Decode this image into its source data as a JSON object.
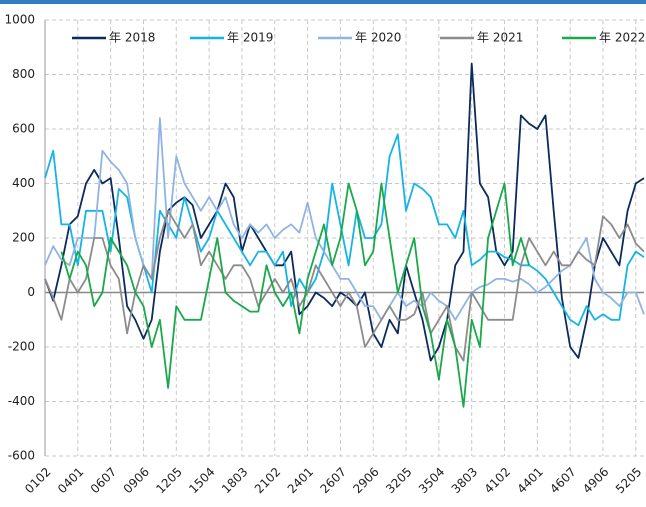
{
  "chart_data": {
    "type": "line",
    "categories": [
      "0102",
      null,
      null,
      null,
      "0401",
      null,
      null,
      null,
      "0607",
      null,
      null,
      null,
      "0906",
      null,
      null,
      null,
      "1205",
      null,
      null,
      null,
      "1504",
      null,
      null,
      null,
      "1803",
      null,
      null,
      null,
      "2102",
      null,
      null,
      null,
      "2401",
      null,
      null,
      null,
      "2607",
      null,
      null,
      null,
      "2906",
      null,
      null,
      null,
      "3205",
      null,
      null,
      null,
      "3504",
      null,
      null,
      null,
      "3803",
      null,
      null,
      null,
      "4102",
      null,
      null,
      null,
      "4401",
      null,
      null,
      null,
      "4607",
      null,
      null,
      null,
      "4906",
      null,
      null,
      null,
      "5205",
      null
    ],
    "series": [
      {
        "name": "年 2018",
        "color": "#0b2a5e",
        "values": [
          50,
          -30,
          100,
          250,
          280,
          400,
          450,
          400,
          420,
          200,
          -50,
          -100,
          -170,
          -100,
          150,
          300,
          330,
          350,
          320,
          200,
          250,
          300,
          400,
          350,
          150,
          250,
          200,
          150,
          100,
          100,
          150,
          -80,
          -50,
          0,
          -20,
          -50,
          0,
          -20,
          -50,
          0,
          -150,
          -200,
          -100,
          -150,
          100,
          0,
          -100,
          -250,
          -200,
          -100,
          100,
          150,
          840,
          400,
          350,
          150,
          100,
          150,
          650,
          620,
          600,
          650,
          300,
          -20,
          -200,
          -240,
          -100,
          100,
          200,
          150,
          100,
          300,
          400,
          420
        ]
      },
      {
        "name": "年 2019",
        "color": "#14b4e6",
        "values": [
          420,
          520,
          250,
          250,
          100,
          300,
          300,
          300,
          150,
          380,
          350,
          200,
          100,
          0,
          300,
          250,
          200,
          350,
          250,
          150,
          200,
          300,
          250,
          200,
          150,
          100,
          150,
          150,
          100,
          150,
          -50,
          50,
          0,
          50,
          150,
          400,
          250,
          100,
          300,
          200,
          200,
          250,
          500,
          580,
          300,
          400,
          380,
          350,
          250,
          250,
          200,
          300,
          100,
          120,
          150,
          150,
          130,
          120,
          100,
          100,
          80,
          50,
          0,
          -50,
          -100,
          -120,
          -50,
          -100,
          -80,
          -100,
          -100,
          100,
          150,
          130
        ]
      },
      {
        "name": "年 2020",
        "color": "#8fb4e3",
        "values": [
          100,
          170,
          120,
          100,
          200,
          200,
          200,
          520,
          480,
          450,
          400,
          200,
          100,
          50,
          640,
          200,
          500,
          400,
          350,
          300,
          350,
          300,
          350,
          250,
          200,
          250,
          220,
          250,
          200,
          230,
          250,
          220,
          330,
          200,
          150,
          100,
          50,
          50,
          0,
          -50,
          -50,
          -100,
          -50,
          0,
          -50,
          -30,
          -50,
          0,
          -30,
          -50,
          -100,
          -50,
          0,
          20,
          30,
          50,
          50,
          40,
          50,
          30,
          0,
          20,
          50,
          80,
          100,
          150,
          200,
          50,
          0,
          -20,
          -50,
          0,
          0,
          -80
        ]
      },
      {
        "name": "年 2021",
        "color": "#8c8c8c",
        "values": [
          50,
          -20,
          -100,
          50,
          0,
          50,
          200,
          200,
          100,
          50,
          -150,
          0,
          100,
          50,
          200,
          300,
          250,
          200,
          250,
          100,
          150,
          100,
          50,
          100,
          100,
          50,
          -50,
          0,
          50,
          0,
          50,
          -50,
          0,
          100,
          50,
          0,
          -50,
          0,
          -50,
          -200,
          -150,
          -100,
          -50,
          -100,
          -100,
          -80,
          0,
          -150,
          -100,
          -50,
          -200,
          -250,
          0,
          -50,
          -100,
          -100,
          -100,
          -100,
          100,
          200,
          150,
          100,
          150,
          100,
          100,
          150,
          120,
          100,
          280,
          250,
          200,
          250,
          180,
          150
        ]
      },
      {
        "name": "年 2022",
        "color": "#1aa84a",
        "values": [
          null,
          null,
          150,
          50,
          150,
          100,
          -50,
          0,
          200,
          150,
          100,
          0,
          -50,
          -200,
          -100,
          -350,
          -50,
          -100,
          -100,
          -100,
          50,
          200,
          0,
          -30,
          -50,
          -70,
          -70,
          100,
          0,
          -50,
          0,
          -150,
          50,
          150,
          250,
          100,
          200,
          400,
          300,
          100,
          150,
          400,
          200,
          0,
          100,
          200,
          -50,
          -150,
          -320,
          -100,
          -200,
          -420,
          -100,
          -200,
          200,
          300,
          400,
          100,
          200,
          100,
          null,
          null,
          null,
          null,
          null,
          null,
          null,
          null,
          null,
          null,
          null,
          null,
          null,
          null
        ]
      }
    ],
    "ylim": [
      -600,
      1000
    ],
    "yticks": [
      -600,
      -400,
      -200,
      0,
      200,
      400,
      600,
      800,
      1000
    ],
    "grid": true
  }
}
